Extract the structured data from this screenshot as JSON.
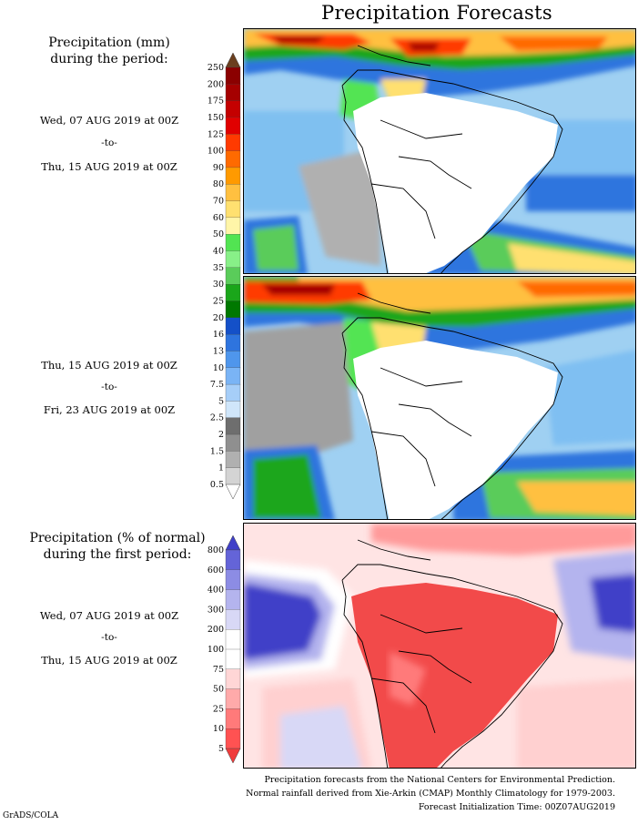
{
  "title": "Precipitation Forecasts",
  "left_column": {
    "mm_header": [
      "Precipitation (mm)",
      "during the period:"
    ],
    "period1": {
      "start": "Wed, 07 AUG 2019 at 00Z",
      "to": "-to-",
      "end": "Thu, 15 AUG 2019 at 00Z"
    },
    "period2": {
      "start": "Thu, 15 AUG 2019 at 00Z",
      "to": "-to-",
      "end": "Fri, 23 AUG 2019 at 00Z"
    },
    "pct_header": [
      "Precipitation (% of normal)",
      "during the first period:"
    ],
    "period3": {
      "start": "Wed, 07 AUG 2019 at 00Z",
      "to": "-to-",
      "end": "Thu, 15 AUG 2019 at 00Z"
    }
  },
  "mm_colorbar": {
    "ticks": [
      "250",
      "200",
      "175",
      "150",
      "125",
      "100",
      "90",
      "80",
      "70",
      "60",
      "50",
      "40",
      "35",
      "30",
      "25",
      "20",
      "16",
      "13",
      "10",
      "7.5",
      "5",
      "2.5",
      "2",
      "1.5",
      "1",
      "0.5"
    ],
    "colors": [
      "#6b3f1f",
      "#8b0000",
      "#a50000",
      "#c40000",
      "#e00000",
      "#ff3a00",
      "#ff6a00",
      "#ff9a00",
      "#ffc040",
      "#ffe070",
      "#fff5a8",
      "#52e452",
      "#88f088",
      "#5acc5a",
      "#1aa61a",
      "#007800",
      "#1450c8",
      "#2e74de",
      "#4f96ec",
      "#7ab4f5",
      "#a6cef8",
      "#d0e6fa",
      "#6e6e6e",
      "#8f8f8f",
      "#b0b0b0",
      "#d4d4d4",
      "#ffffff"
    ]
  },
  "pct_colorbar": {
    "ticks": [
      "800",
      "600",
      "400",
      "300",
      "200",
      "100",
      "75",
      "50",
      "25",
      "10",
      "5"
    ],
    "colors": [
      "#4040c8",
      "#6464d8",
      "#8c8ce4",
      "#b4b4ee",
      "#d8d8f6",
      "#ffffff",
      "#ffffff",
      "#ffd6d6",
      "#ffaaaa",
      "#ff7a7a",
      "#ff5252",
      "#f03c3c"
    ]
  },
  "footer": {
    "line1": "Precipitation forecasts from the National Centers for Environmental Prediction.",
    "line2": "Normal rainfall derived from Xie-Arkin (CMAP) Monthly Climatology for 1979-2003.",
    "line3": "Forecast Initialization Time: 00Z07AUG2019",
    "credit": "GrADS/COLA"
  }
}
